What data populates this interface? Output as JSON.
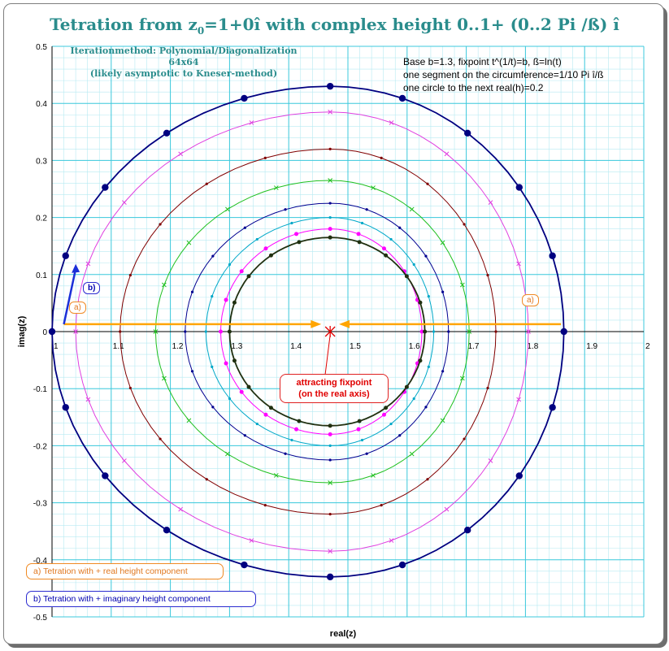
{
  "title": "Tetration from z",
  "title_sub": "0",
  "title_rest": "=1+0î with complex height 0..1+ (0..2 Pi /ß) î",
  "method_line1": "Iterationmethod: Polynomial/Diagonalization 64x64",
  "method_line2": "(likely asymptotic to Kneser-method)",
  "info_line1": "Base b=1.3, fixpoint t^(1/t)=b, ß=ln(t)",
  "info_line2": "one segment on the circumference=1/10 Pi î/ß",
  "info_line3": "one circle to the next  real(h)=0.2",
  "fixpoint_line1": "attracting fixpoint",
  "fixpoint_line2": "(on the real axis)",
  "label_a": "a)",
  "label_b": "b)",
  "legend_a": "a) Tetration with + real height component",
  "legend_b": "b) Tetration with + imaginary height component",
  "colors": {
    "title": "#2a8c8c",
    "grid_major": "#3cc8dc",
    "grid_minor": "#b6eaf2",
    "arrow_a": "#ffa500",
    "arrow_b": "#1a2fd8",
    "fixpoint": "#e00000"
  },
  "chart_data": {
    "type": "scatter",
    "xlabel": "real(z)",
    "ylabel": "imag(z)",
    "xlim": [
      1,
      2
    ],
    "ylim": [
      -0.5,
      0.5
    ],
    "x_ticks": [
      "1",
      "1.1",
      "1.2",
      "1.3",
      "1.4",
      "1.5",
      "1.6",
      "1.7",
      "1.8",
      "1.9",
      "2"
    ],
    "y_ticks": [
      "0.5",
      "0.4",
      "0.3",
      "0.2",
      "0.1",
      "0",
      "-0.1",
      "-0.2",
      "-0.3",
      "-0.4",
      "-0.5"
    ],
    "grid": true,
    "fixpoint": {
      "x": 1.47,
      "y": 0
    },
    "real_height_axis_y": 0.013,
    "imag_arrow": {
      "x0": 1.02,
      "y0": 0.013,
      "x1": 1.04,
      "y1": 0.11
    },
    "series": [
      {
        "color": "#000080",
        "marker": "dot-large",
        "center": [
          1.47,
          0
        ],
        "r_right": 0.395,
        "r_left": 0.47,
        "ry": 0.43,
        "segments": 20
      },
      {
        "color": "#e040e0",
        "marker": "x",
        "center": [
          1.47,
          0
        ],
        "r_right": 0.335,
        "r_left": 0.43,
        "ry": 0.385,
        "segments": 20
      },
      {
        "color": "#800000",
        "marker": "dot-small",
        "center": [
          1.47,
          0
        ],
        "r_right": 0.28,
        "r_left": 0.355,
        "ry": 0.32,
        "segments": 20
      },
      {
        "color": "#20c020",
        "marker": "x",
        "center": [
          1.47,
          0
        ],
        "r_right": 0.235,
        "r_left": 0.295,
        "ry": 0.265,
        "segments": 20
      },
      {
        "color": "#000090",
        "marker": "dot-small",
        "center": [
          1.47,
          0
        ],
        "r_right": 0.2,
        "r_left": 0.245,
        "ry": 0.225,
        "segments": 20
      },
      {
        "color": "#00a8c8",
        "marker": "dot-small",
        "center": [
          1.47,
          0
        ],
        "r_right": 0.175,
        "r_left": 0.21,
        "ry": 0.2,
        "segments": 20
      },
      {
        "color": "#ff00ff",
        "marker": "dot-med",
        "center": [
          1.47,
          0
        ],
        "r_right": 0.155,
        "r_left": 0.185,
        "ry": 0.18,
        "segments": 20
      },
      {
        "color": "#203010",
        "marker": "dot-med",
        "center": [
          1.47,
          0
        ],
        "r_right": 0.16,
        "r_left": 0.17,
        "ry": 0.165,
        "segments": 20
      }
    ]
  }
}
